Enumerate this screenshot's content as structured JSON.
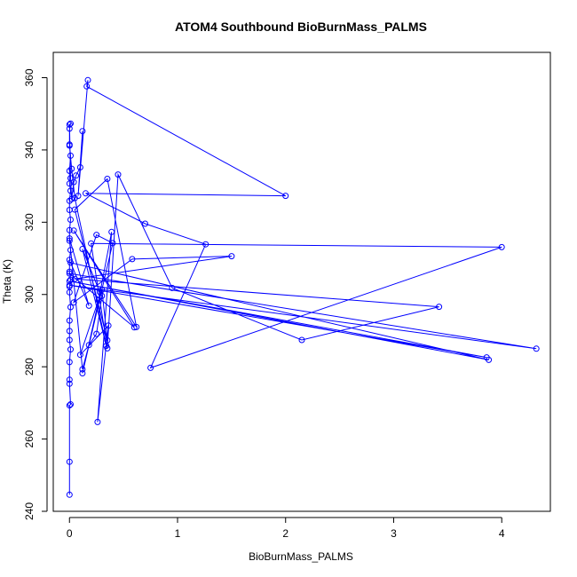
{
  "chart_data": {
    "type": "line",
    "title": "ATOM4 Southbound BioBurnMass_PALMS",
    "xlabel": "BioBurnMass_PALMS",
    "ylabel": "Theta (K)",
    "xlim": [
      -0.15,
      4.45
    ],
    "ylim": [
      240,
      367
    ],
    "x_ticks": [
      0,
      1,
      2,
      3,
      4
    ],
    "x_tick_labels": [
      "0",
      "1",
      "2",
      "3",
      "4"
    ],
    "y_ticks": [
      240,
      260,
      280,
      300,
      320,
      340,
      360
    ],
    "y_tick_labels": [
      "240",
      "260",
      "280",
      "300",
      "320",
      "340",
      "360"
    ],
    "grid": false,
    "legend": "none",
    "color": "#0000ff",
    "series": [
      {
        "points": [
          [
            0.0,
            244.6
          ],
          [
            0.0,
            253.7
          ],
          [
            0.0,
            269.3
          ],
          [
            0.01,
            269.6
          ],
          [
            0.0,
            275.3
          ],
          [
            0.0,
            276.4
          ],
          [
            0.0,
            281.3
          ],
          [
            0.01,
            284.8
          ],
          [
            0.0,
            287.4
          ],
          [
            0.0,
            289.9
          ],
          [
            0.0,
            292.8
          ],
          [
            0.01,
            296.5
          ],
          [
            0.0,
            300.6
          ],
          [
            0.0,
            302.2
          ],
          [
            0.01,
            304.1
          ],
          [
            0.0,
            306.3
          ],
          [
            0.0,
            309.6
          ],
          [
            0.01,
            312.3
          ],
          [
            0.0,
            314.9
          ],
          [
            0.0,
            317.8
          ],
          [
            0.01,
            320.7
          ],
          [
            0.0,
            323.4
          ],
          [
            0.0,
            325.9
          ],
          [
            0.01,
            328.7
          ],
          [
            0.0,
            330.7
          ],
          [
            0.0,
            334.2
          ],
          [
            0.01,
            338.4
          ],
          [
            0.0,
            341.5
          ],
          [
            0.0,
            345.9
          ],
          [
            0.01,
            347.3
          ],
          [
            0.0,
            347.0
          ],
          [
            0.01,
            332.2
          ],
          [
            0.02,
            326.4
          ],
          [
            0.04,
            331.1
          ],
          [
            0.06,
            332.9
          ],
          [
            0.1,
            335.2
          ],
          [
            0.12,
            345.2
          ],
          [
            0.08,
            327.3
          ],
          [
            0.17,
            359.3
          ],
          [
            0.16,
            357.6
          ],
          [
            2.0,
            327.3
          ],
          [
            0.15,
            328.0
          ],
          [
            0.7,
            319.6
          ],
          [
            1.26,
            313.9
          ],
          [
            0.75,
            279.7
          ],
          [
            4.0,
            313.1
          ],
          [
            0.2,
            314.1
          ],
          [
            0.35,
            285.1
          ],
          [
            0.45,
            333.2
          ],
          [
            0.95,
            301.8
          ],
          [
            2.15,
            287.4
          ],
          [
            3.42,
            296.6
          ],
          [
            0.05,
            304.3
          ],
          [
            1.5,
            310.6
          ],
          [
            0.58,
            309.8
          ],
          [
            0.04,
            297.8
          ],
          [
            0.25,
            316.5
          ],
          [
            0.4,
            314.2
          ],
          [
            0.12,
            278.2
          ],
          [
            0.27,
            298.4
          ],
          [
            0.39,
            317.3
          ],
          [
            0.26,
            264.7
          ],
          [
            0.36,
            291.4
          ],
          [
            0.1,
            283.3
          ],
          [
            0.3,
            301.3
          ],
          [
            0.35,
            287.3
          ],
          [
            0.05,
            323.5
          ],
          [
            0.35,
            332.0
          ],
          [
            0.62,
            291.0
          ],
          [
            0.04,
            317.7
          ],
          [
            0.6,
            290.9
          ],
          [
            0.0,
            305.8
          ],
          [
            4.32,
            285.0
          ],
          [
            0.0,
            302.6
          ],
          [
            3.86,
            282.6
          ],
          [
            0.0,
            303.7
          ],
          [
            3.88,
            281.9
          ],
          [
            0.01,
            308.8
          ],
          [
            0.18,
            296.9
          ],
          [
            0.0,
            315.5
          ],
          [
            0.12,
            279.3
          ],
          [
            0.18,
            286.0
          ],
          [
            0.25,
            289.1
          ],
          [
            0.3,
            299.6
          ],
          [
            0.28,
            300.7
          ],
          [
            0.12,
            312.6
          ],
          [
            0.34,
            285.8
          ],
          [
            0.05,
            326.7
          ],
          [
            0.02,
            334.8
          ],
          [
            0.0,
            341.2
          ]
        ]
      }
    ]
  }
}
